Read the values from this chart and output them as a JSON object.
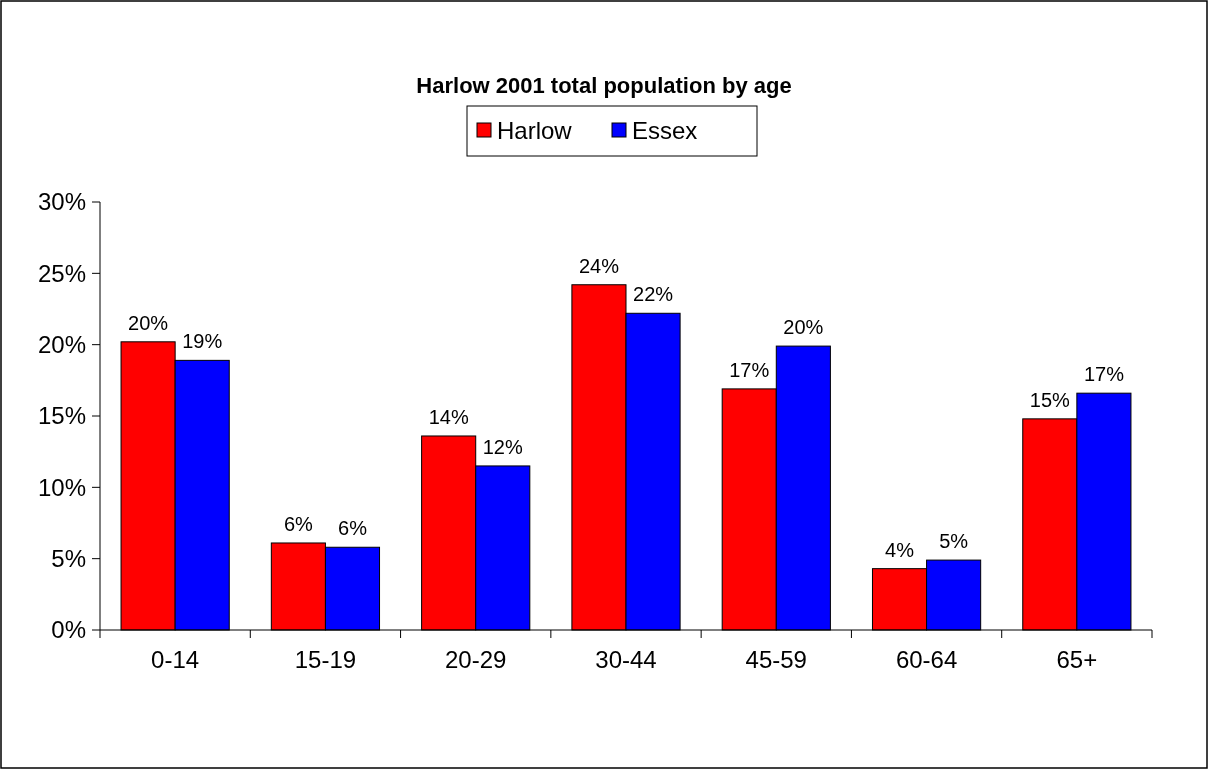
{
  "chart_data": {
    "type": "bar",
    "title": "Harlow 2001 total population by age",
    "categories": [
      "0-14",
      "15-19",
      "20-29",
      "30-44",
      "45-59",
      "60-64",
      "65+"
    ],
    "series": [
      {
        "name": "Harlow",
        "color": "#ff0000",
        "values": [
          20.2,
          6.1,
          13.6,
          24.2,
          16.9,
          4.3,
          14.8
        ],
        "value_labels": [
          "20%",
          "6%",
          "14%",
          "24%",
          "17%",
          "4%",
          "15%"
        ]
      },
      {
        "name": "Essex",
        "color": "#0000ff",
        "values": [
          18.9,
          5.8,
          11.5,
          22.2,
          19.9,
          4.9,
          16.6
        ],
        "value_labels": [
          "19%",
          "6%",
          "12%",
          "22%",
          "20%",
          "5%",
          "17%"
        ]
      }
    ],
    "ylim": [
      0,
      30
    ],
    "yticks": [
      {
        "value": 0,
        "label": "0%"
      },
      {
        "value": 5,
        "label": "5%"
      },
      {
        "value": 10,
        "label": "10%"
      },
      {
        "value": 15,
        "label": "15%"
      },
      {
        "value": 20,
        "label": "20%"
      },
      {
        "value": 25,
        "label": "25%"
      },
      {
        "value": 30,
        "label": "30%"
      }
    ],
    "legend": "top",
    "grid": false
  }
}
